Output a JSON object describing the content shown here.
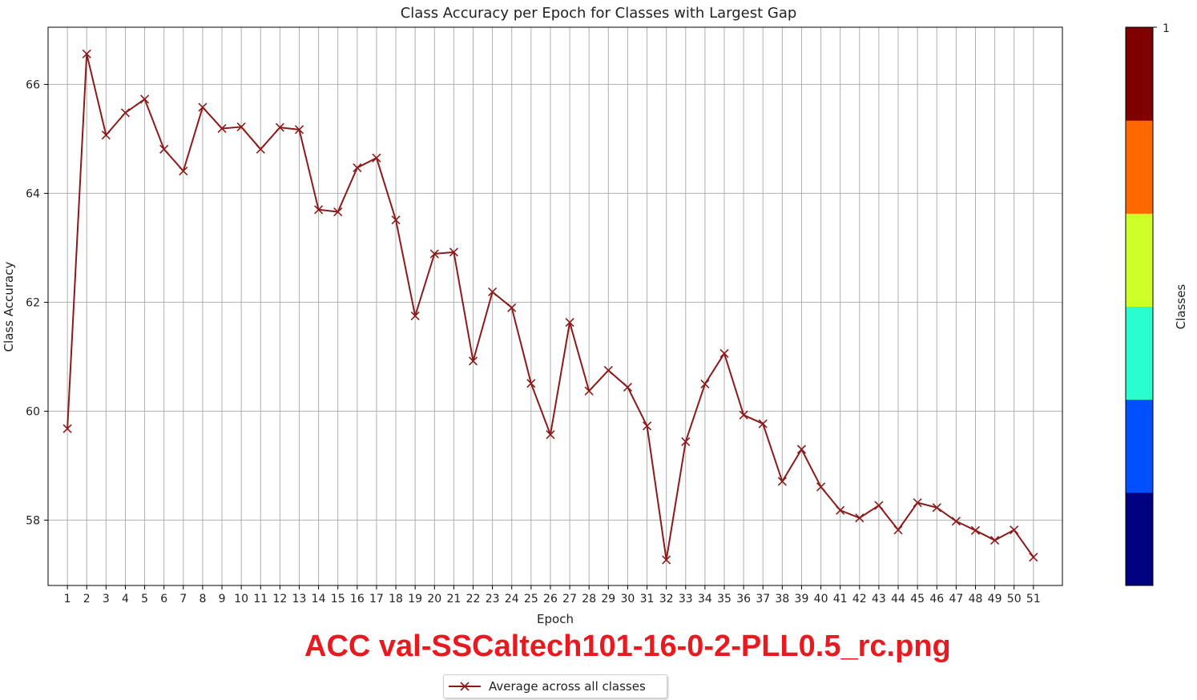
{
  "chart_data": {
    "type": "line",
    "title": "Class Accuracy per Epoch for Classes with Largest Gap",
    "xlabel": "Epoch",
    "ylabel": "Class Accuracy",
    "x": [
      1,
      2,
      3,
      4,
      5,
      6,
      7,
      8,
      9,
      10,
      11,
      12,
      13,
      14,
      15,
      16,
      17,
      18,
      19,
      20,
      21,
      22,
      23,
      24,
      25,
      26,
      27,
      28,
      29,
      30,
      31,
      32,
      33,
      34,
      35,
      36,
      37,
      38,
      39,
      40,
      41,
      42,
      43,
      44,
      45,
      46,
      47,
      48,
      49,
      50,
      51
    ],
    "series": [
      {
        "name": "Average across all classes",
        "color": "#8b1a1a",
        "marker": "x",
        "values": [
          59.68,
          66.56,
          65.07,
          65.48,
          65.73,
          64.81,
          64.41,
          65.58,
          65.19,
          65.22,
          64.81,
          65.21,
          65.17,
          63.7,
          63.66,
          64.47,
          64.65,
          63.51,
          61.75,
          62.89,
          62.92,
          60.92,
          62.19,
          61.9,
          60.51,
          59.57,
          61.63,
          60.37,
          60.75,
          60.44,
          59.73,
          57.27,
          59.44,
          60.5,
          61.06,
          59.93,
          59.77,
          58.71,
          59.3,
          58.61,
          58.18,
          58.04,
          58.27,
          57.82,
          58.32,
          58.23,
          57.98,
          57.81,
          57.63,
          57.82,
          57.32
        ]
      }
    ],
    "ylim": [
      56.8,
      67.05
    ],
    "xlim": [
      0,
      52.5
    ],
    "yticks": [
      58,
      60,
      62,
      64,
      66
    ],
    "grid": true,
    "legend_position": "bottom-center",
    "colorbar": {
      "label": "Classes",
      "top_tick_label": "1",
      "colors": [
        "#000080",
        "#0050ff",
        "#29ffce",
        "#ceff29",
        "#ff6800",
        "#800000"
      ]
    },
    "caption": "ACC val-SSCaltech101-16-0-2-PLL0.5_rc.png"
  }
}
